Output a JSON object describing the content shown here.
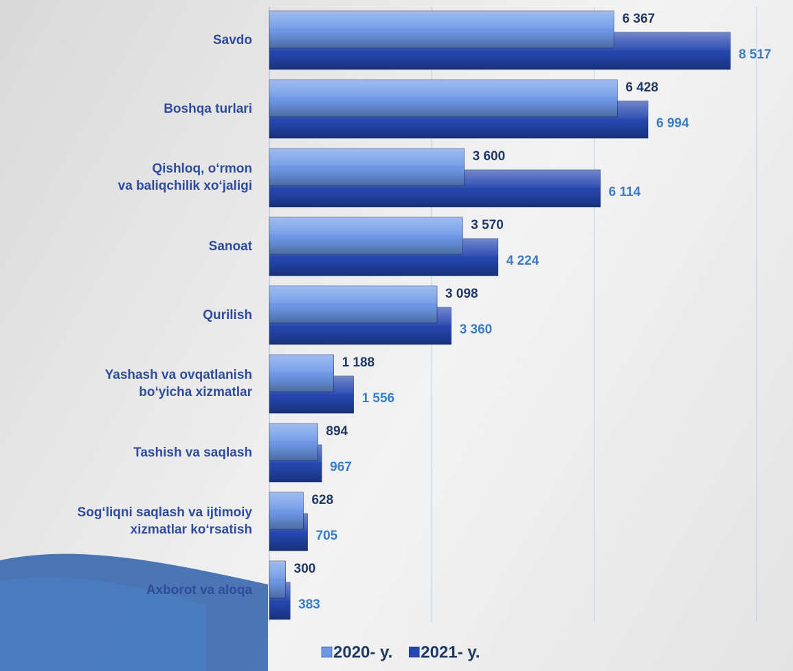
{
  "chart_data": {
    "type": "bar",
    "orientation": "horizontal",
    "categories": [
      "Savdo",
      "Boshqa turlari",
      "Qishloq, o‘rmon\nva baliqchilik xo‘jaligi",
      "Sanoat",
      "Qurilish",
      "Yashash va ovqatlanish\nbo‘yicha xizmatlar",
      "Tashish va saqlash",
      "Sog‘liqni saqlash va ijtimoiy\nxizmatlar ko‘rsatish",
      "Axborot va aloqa"
    ],
    "series": [
      {
        "name": "2020- y.",
        "color": "#6d98e6",
        "label_color": "#1f3864",
        "values": [
          6367,
          6428,
          3600,
          3570,
          3098,
          1188,
          894,
          628,
          300
        ],
        "value_labels": [
          "6 367",
          "6 428",
          "3 600",
          "3 570",
          "3 098",
          "1 188",
          "894",
          "628",
          "300"
        ]
      },
      {
        "name": "2021- y.",
        "color": "#2446ae",
        "label_color": "#3a7cc4",
        "values": [
          8517,
          6994,
          6114,
          4224,
          3360,
          1556,
          967,
          705,
          383
        ],
        "value_labels": [
          "8 517",
          "6 994",
          "6 114",
          "4 224",
          "3 360",
          "1 556",
          "967",
          "705",
          "383"
        ]
      }
    ],
    "xlim": [
      0,
      9000
    ],
    "xticks": [
      0,
      3000,
      6000,
      9000
    ],
    "grid": true,
    "legend": "bottom"
  }
}
